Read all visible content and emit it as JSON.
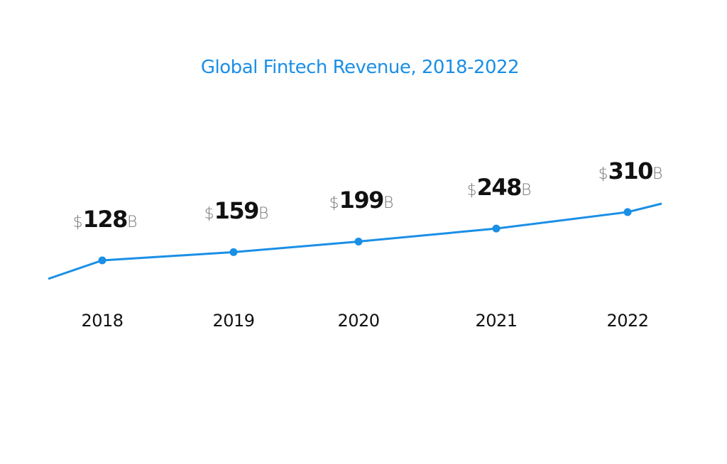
{
  "chart_data": {
    "type": "line",
    "title": "Global Fintech Revenue, 2018-2022",
    "categories": [
      "2018",
      "2019",
      "2020",
      "2021",
      "2022"
    ],
    "values": [
      128,
      159,
      199,
      248,
      310
    ],
    "value_prefix": "$",
    "value_suffix": "B",
    "unit": "billion USD",
    "xlabel": "",
    "ylabel": "",
    "grid": false,
    "legend": "none",
    "line_color": "#1a8fe6",
    "title_color": "#1a8fe6"
  }
}
